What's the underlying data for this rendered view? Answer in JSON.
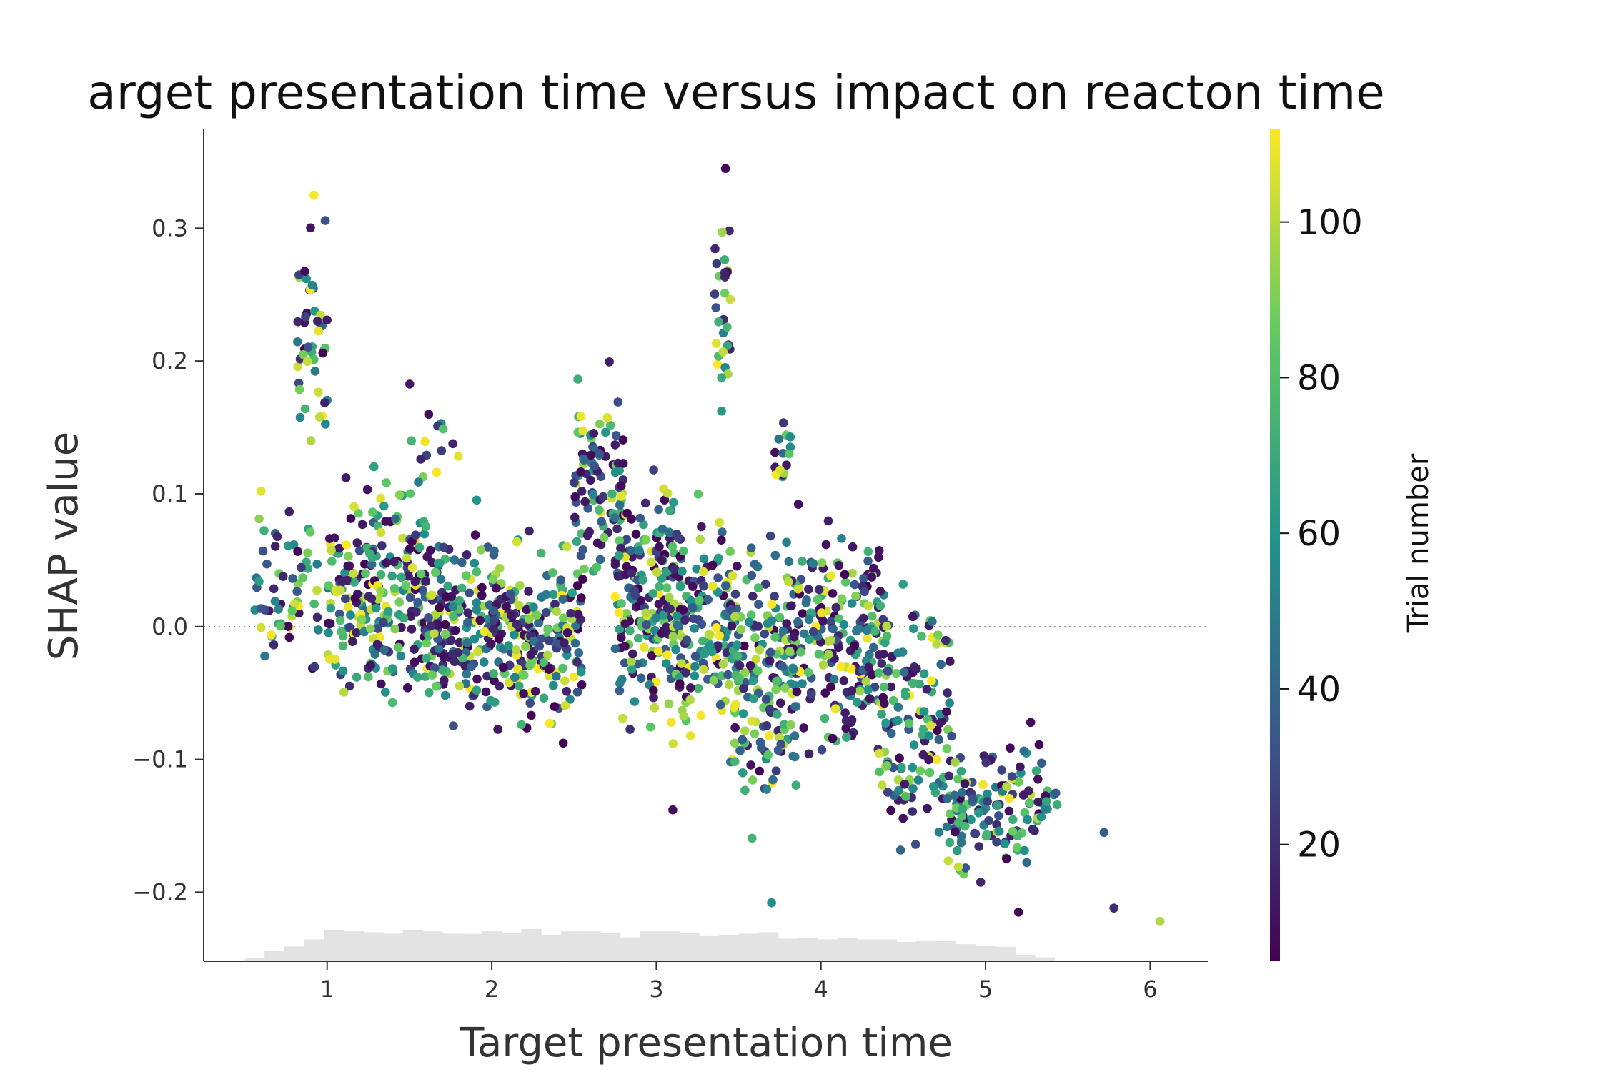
{
  "chart_data": {
    "type": "scatter",
    "title": "arget presentation time versus impact on reacton time",
    "xlabel": "Target presentation time",
    "ylabel": "SHAP value",
    "xlim": [
      0.25,
      6.35
    ],
    "ylim": [
      -0.252,
      0.375
    ],
    "x_ticks": [
      1,
      2,
      3,
      4,
      5,
      6
    ],
    "y_ticks": [
      -0.2,
      -0.1,
      0.0,
      0.1,
      0.2,
      0.3
    ],
    "y_tick_labels": [
      "−0.2",
      "−0.1",
      "0.0",
      "0.1",
      "0.2",
      "0.3"
    ],
    "zero_line": {
      "y": 0.0,
      "style": "dotted",
      "color": "#999999"
    },
    "colorbar": {
      "label": "Trial number",
      "range": [
        5,
        112
      ],
      "ticks": [
        20,
        40,
        60,
        80,
        100
      ],
      "colormap": "viridis",
      "colors": [
        "#440154",
        "#3b528b",
        "#21918c",
        "#5ec962",
        "#fde725"
      ]
    },
    "histogram": {
      "color": "#e3e3e3",
      "bin_edges": [
        0.5,
        0.62,
        0.74,
        0.86,
        0.98,
        1.1,
        1.22,
        1.34,
        1.46,
        1.58,
        1.7,
        1.82,
        1.94,
        2.06,
        2.18,
        2.3,
        2.42,
        2.54,
        2.66,
        2.78,
        2.9,
        3.02,
        3.14,
        3.26,
        3.38,
        3.5,
        3.62,
        3.74,
        3.86,
        3.98,
        4.1,
        4.22,
        4.34,
        4.46,
        4.58,
        4.7,
        4.82,
        4.94,
        5.06,
        5.18,
        5.3,
        5.42
      ],
      "relative_heights": [
        0.1,
        0.32,
        0.46,
        0.68,
        0.98,
        0.93,
        0.9,
        0.86,
        0.98,
        0.93,
        0.86,
        0.85,
        0.93,
        0.88,
        1.0,
        0.8,
        0.93,
        0.93,
        0.88,
        0.74,
        0.93,
        0.93,
        0.88,
        0.78,
        0.8,
        0.86,
        0.9,
        0.7,
        0.73,
        0.68,
        0.73,
        0.68,
        0.68,
        0.6,
        0.65,
        0.63,
        0.53,
        0.48,
        0.45,
        0.2,
        0.12
      ]
    },
    "clusters": [
      {
        "x": [
          0.55,
          0.95
        ],
        "y": [
          -0.055,
          0.115
        ],
        "n": 60
      },
      {
        "x": [
          0.82,
          1.0
        ],
        "y": [
          0.1,
          0.33
        ],
        "n": 45
      },
      {
        "x": [
          1.0,
          1.6
        ],
        "y": [
          -0.085,
          0.135
        ],
        "n": 240
      },
      {
        "x": [
          1.5,
          1.8
        ],
        "y": [
          0.09,
          0.188
        ],
        "n": 14
      },
      {
        "x": [
          1.6,
          2.0
        ],
        "y": [
          -0.1,
          0.105
        ],
        "n": 160
      },
      {
        "x": [
          2.0,
          2.55
        ],
        "y": [
          -0.095,
          0.085
        ],
        "n": 230
      },
      {
        "x": [
          2.5,
          2.8
        ],
        "y": [
          0.0,
          0.205
        ],
        "n": 95
      },
      {
        "x": [
          2.75,
          3.15
        ],
        "y": [
          -0.1,
          0.13
        ],
        "n": 200
      },
      {
        "x": [
          3.1,
          3.5
        ],
        "y": [
          -0.11,
          0.11
        ],
        "n": 150
      },
      {
        "x": [
          3.35,
          3.45
        ],
        "y": [
          0.12,
          0.345
        ],
        "n": 30
      },
      {
        "x": [
          3.45,
          3.85
        ],
        "y": [
          -0.175,
          0.1
        ],
        "n": 170
      },
      {
        "x": [
          3.72,
          3.82
        ],
        "y": [
          0.09,
          0.175
        ],
        "n": 16
      },
      {
        "x": [
          3.8,
          4.4
        ],
        "y": [
          -0.125,
          0.105
        ],
        "n": 210
      },
      {
        "x": [
          4.35,
          4.8
        ],
        "y": [
          -0.2,
          0.055
        ],
        "n": 140
      },
      {
        "x": [
          4.75,
          5.35
        ],
        "y": [
          -0.21,
          -0.065
        ],
        "n": 130
      },
      {
        "x": [
          5.3,
          5.45
        ],
        "y": [
          -0.16,
          -0.11
        ],
        "n": 8
      }
    ],
    "outliers": [
      {
        "x": 0.92,
        "y": 0.325
      },
      {
        "x": 3.42,
        "y": 0.345
      },
      {
        "x": 3.1,
        "y": -0.138
      },
      {
        "x": 3.7,
        "y": -0.208
      },
      {
        "x": 5.72,
        "y": -0.155
      },
      {
        "x": 5.78,
        "y": -0.212
      },
      {
        "x": 6.06,
        "y": -0.222
      },
      {
        "x": 5.2,
        "y": -0.215
      }
    ]
  }
}
